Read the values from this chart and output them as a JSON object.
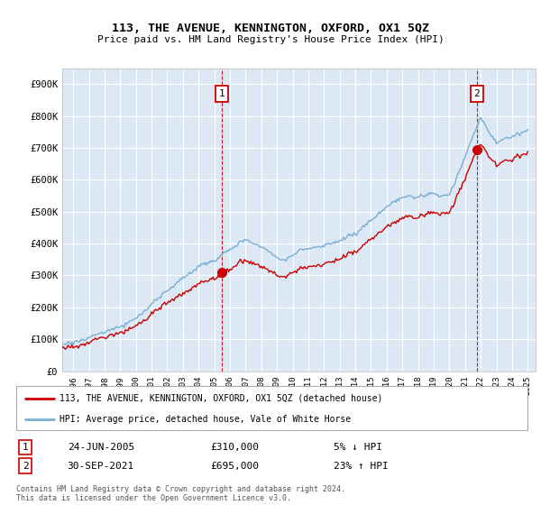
{
  "title": "113, THE AVENUE, KENNINGTON, OXFORD, OX1 5QZ",
  "subtitle": "Price paid vs. HM Land Registry's House Price Index (HPI)",
  "ylim": [
    0,
    950000
  ],
  "xlim_start": 1995.3,
  "xlim_end": 2025.5,
  "background_color": "#dce9f5",
  "grid_color": "#ffffff",
  "hpi_color": "#7aaed0",
  "price_color": "#cc0000",
  "sale1_x": 2005.48,
  "sale1_y": 310000,
  "sale2_x": 2021.75,
  "sale2_y": 695000,
  "legend_label1": "113, THE AVENUE, KENNINGTON, OXFORD, OX1 5QZ (detached house)",
  "legend_label2": "HPI: Average price, detached house, Vale of White Horse",
  "annotation1_date": "24-JUN-2005",
  "annotation1_price": "£310,000",
  "annotation1_hpi": "5% ↓ HPI",
  "annotation2_date": "30-SEP-2021",
  "annotation2_price": "£695,000",
  "annotation2_hpi": "23% ↑ HPI",
  "footer": "Contains HM Land Registry data © Crown copyright and database right 2024.\nThis data is licensed under the Open Government Licence v3.0."
}
